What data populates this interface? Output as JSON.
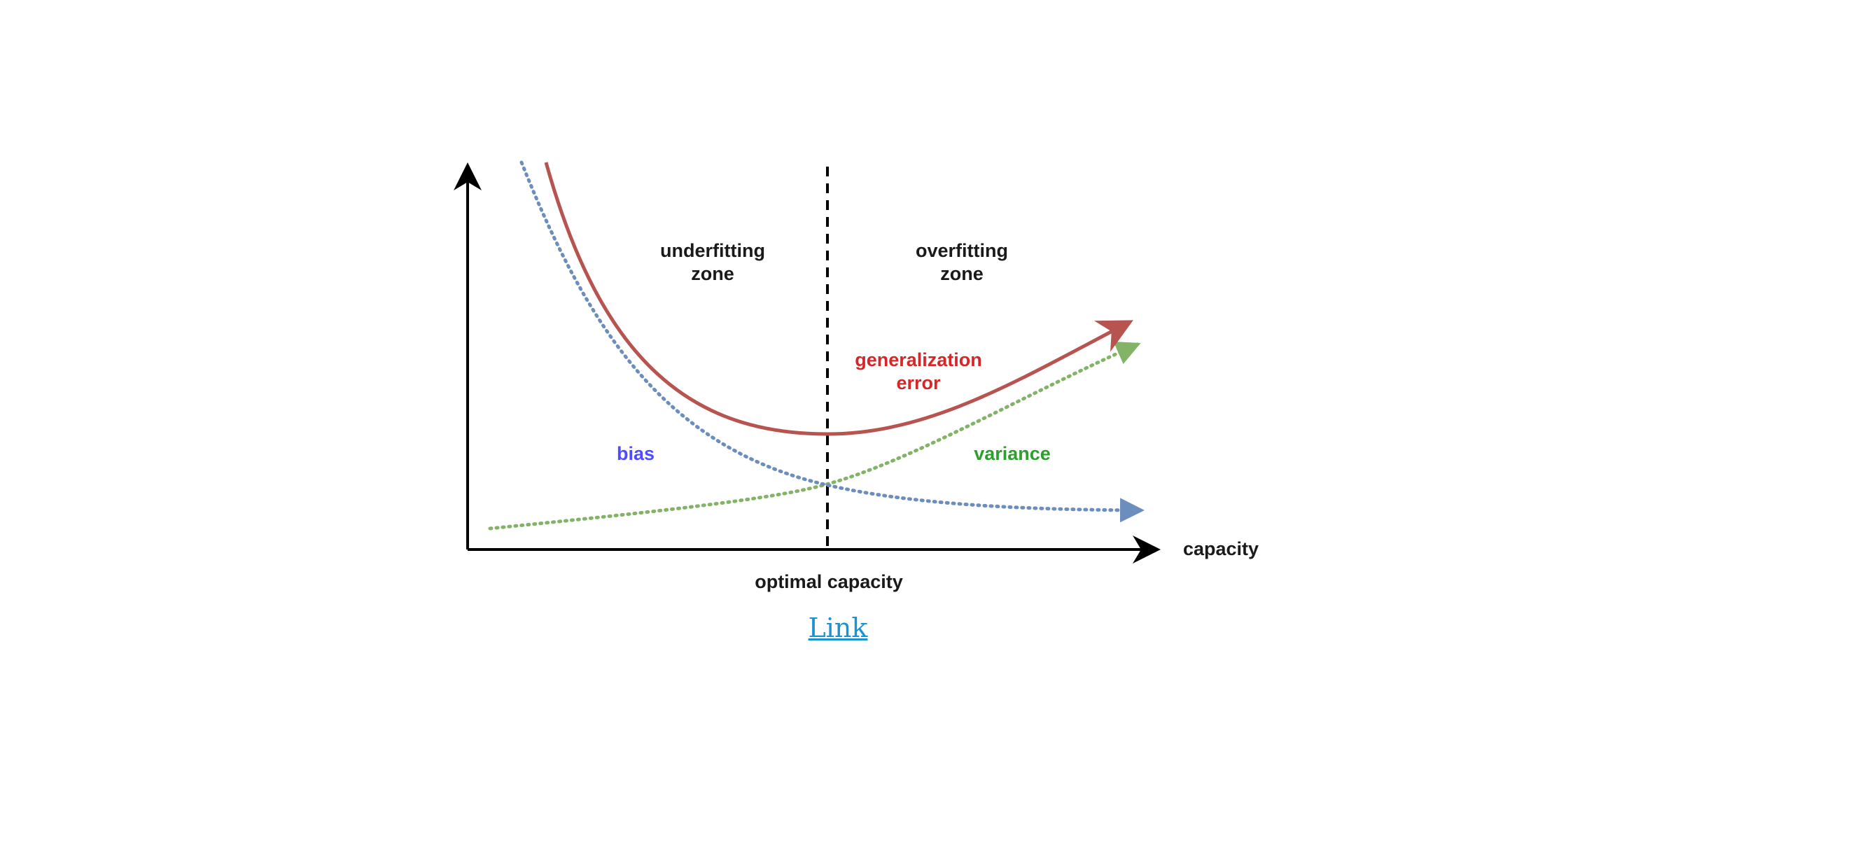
{
  "diagram": {
    "labels": {
      "underfitting": [
        "underfitting",
        "zone"
      ],
      "overfitting": [
        "overfitting",
        "zone"
      ],
      "generalization": [
        "generalization",
        "error"
      ],
      "bias": "bias",
      "variance": "variance",
      "capacity": "capacity",
      "optimal": "optimal capacity"
    },
    "colors": {
      "axis": "#000000",
      "generalization": "#b85450",
      "generalization_text": "#d62728",
      "bias": "#6c8ebf",
      "bias_text": "#4d4dff",
      "variance": "#82b366",
      "variance_text": "#2ca02c",
      "zone_text": "#1a1a1a"
    }
  },
  "link": {
    "label": "Link"
  }
}
